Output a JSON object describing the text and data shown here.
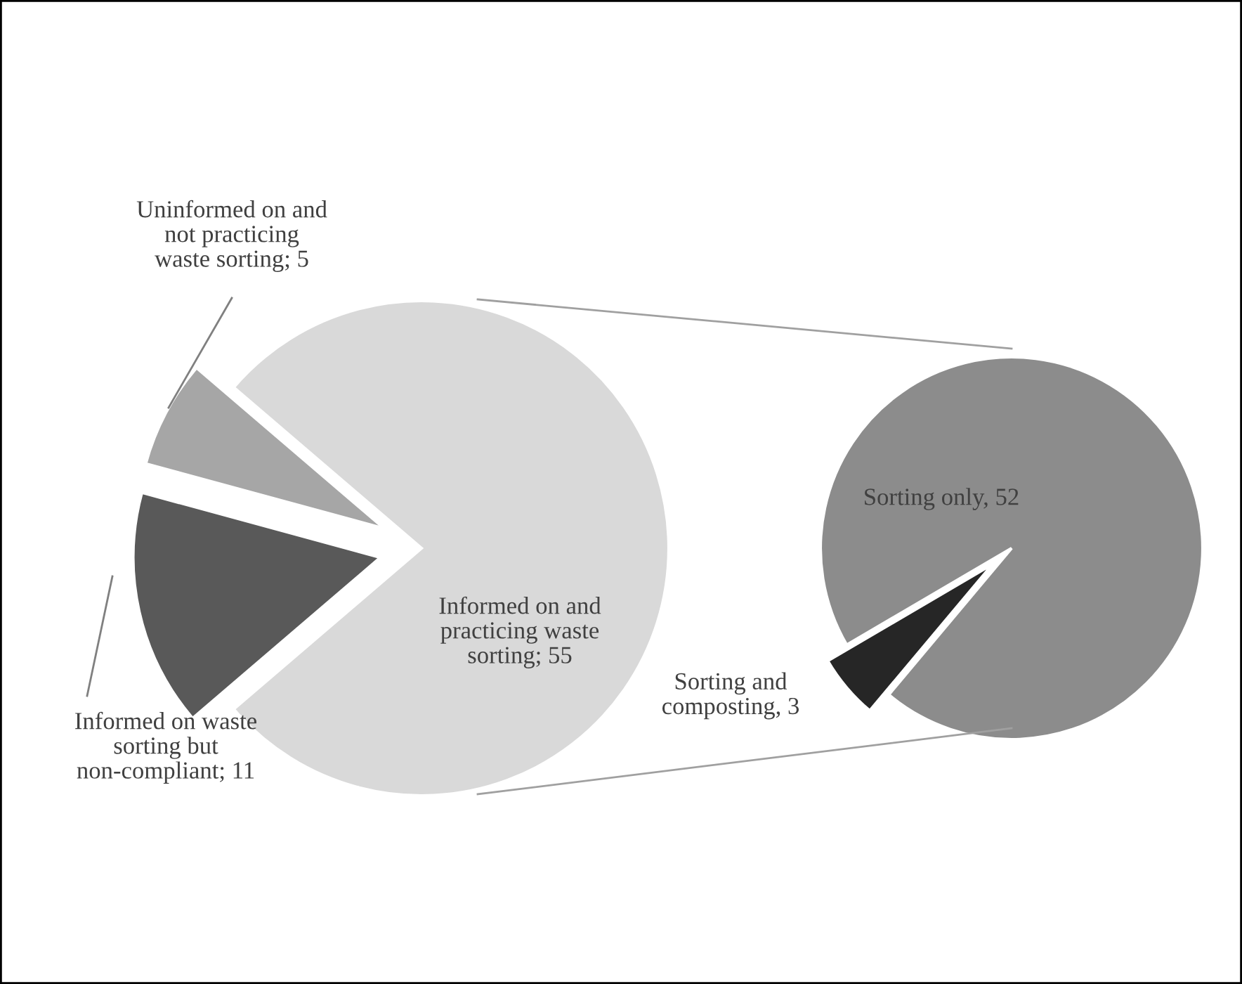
{
  "chart_data": [
    {
      "type": "pie",
      "categories": [
        null,
        null,
        null
      ],
      "values": [
        55,
        11,
        5
      ],
      "colors": [
        "#d9d9d9",
        "#595959",
        "#a6a6a6"
      ],
      "value_labels": [
        "Informed on and practicing waste sorting; 55",
        "Informed on waste sorting but non-compliant; 11",
        "Uninformed on and not practicing waste sorting; 5"
      ]
    },
    {
      "type": "pie",
      "categories": [
        null,
        null
      ],
      "values": [
        52,
        3
      ],
      "colors": [
        "#8c8c8c",
        "#262626"
      ],
      "value_labels": [
        "Sorting only, 52",
        "Sorting and composting, 3"
      ]
    }
  ]
}
